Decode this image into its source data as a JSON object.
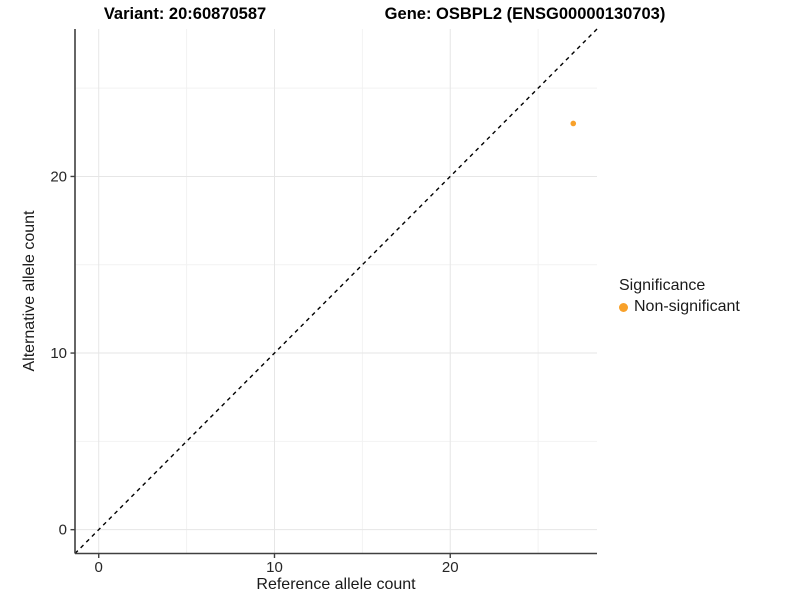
{
  "titles": {
    "variant": "Variant: 20:60870587",
    "gene": "Gene: OSBPL2 (ENSG00000130703)"
  },
  "chart_data": {
    "type": "scatter",
    "title": "Variant: 20:60870587  /  Gene: OSBPL2 (ENSG00000130703)",
    "xlabel": "Reference allele count",
    "ylabel": "Alternative allele count",
    "xlim": [
      -1.35,
      28.35
    ],
    "ylim": [
      -1.35,
      28.35
    ],
    "x_ticks": {
      "values": [
        0,
        10,
        20
      ],
      "labels": [
        "0",
        "10",
        "20"
      ]
    },
    "y_ticks": {
      "values": [
        0,
        10,
        20
      ],
      "labels": [
        "0",
        "10",
        "20"
      ]
    },
    "minor_ticks": [
      5,
      15,
      25
    ],
    "grid": true,
    "legend_position": "right",
    "abline": {
      "slope": 1,
      "intercept": 0,
      "style": "dashed"
    },
    "series": [
      {
        "name": "Non-significant",
        "points": [
          {
            "x": 27,
            "y": 23
          }
        ]
      }
    ]
  },
  "legend": {
    "title": "Significance",
    "items": [
      {
        "label": "Non-significant",
        "color": "#F8A12A"
      }
    ]
  },
  "colors": {
    "point": "#F8A12A",
    "grid_major": "#E6E6E6",
    "grid_minor": "#F2F2F2",
    "axis_line": "#404040",
    "tick_mark": "#404040",
    "tick_label": "#262626",
    "identity_line": "#000000",
    "background": "#FFFFFF"
  }
}
